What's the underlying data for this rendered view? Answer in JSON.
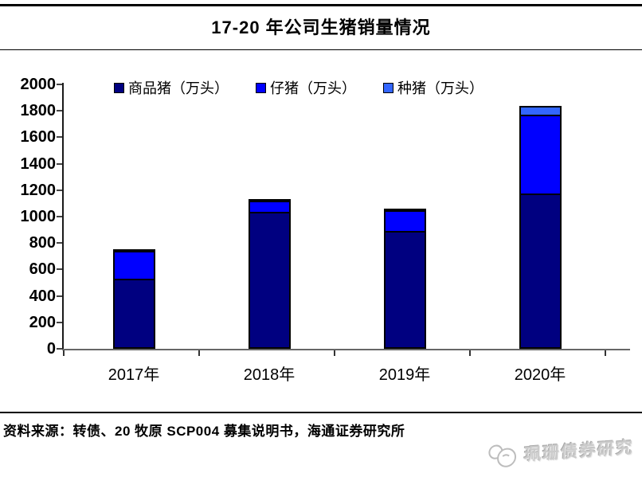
{
  "header": {
    "title": "17-20 年公司生猪销量情况"
  },
  "chart_data": {
    "type": "bar",
    "stacked": true,
    "title": "17-20 年公司生猪销量情况",
    "categories": [
      "2017年",
      "2018年",
      "2019年",
      "2020年"
    ],
    "series": [
      {
        "name": "商品猪（万头）",
        "color": "#000080",
        "values": [
          509,
          1011,
          868,
          1152
        ]
      },
      {
        "name": "仔猪（万头）",
        "color": "#0000FF",
        "values": [
          211,
          86,
          155,
          595
        ]
      },
      {
        "name": "种猪（万头）",
        "color": "#3366FF",
        "values": [
          4,
          4,
          3,
          64
        ]
      }
    ],
    "xlabel": "",
    "ylabel": "",
    "ylim": [
      0,
      2000
    ],
    "ytick_step": 200,
    "grid": false,
    "legend_position": "top"
  },
  "footer": {
    "source": "资料来源：转债、20 牧原 SCP004 募集说明书，海通证券研究所",
    "watermark": "珮珊债券研究"
  },
  "colors": {
    "axis": "#666666",
    "border": "#000000",
    "watermark_gray": "#cbcbcb"
  }
}
